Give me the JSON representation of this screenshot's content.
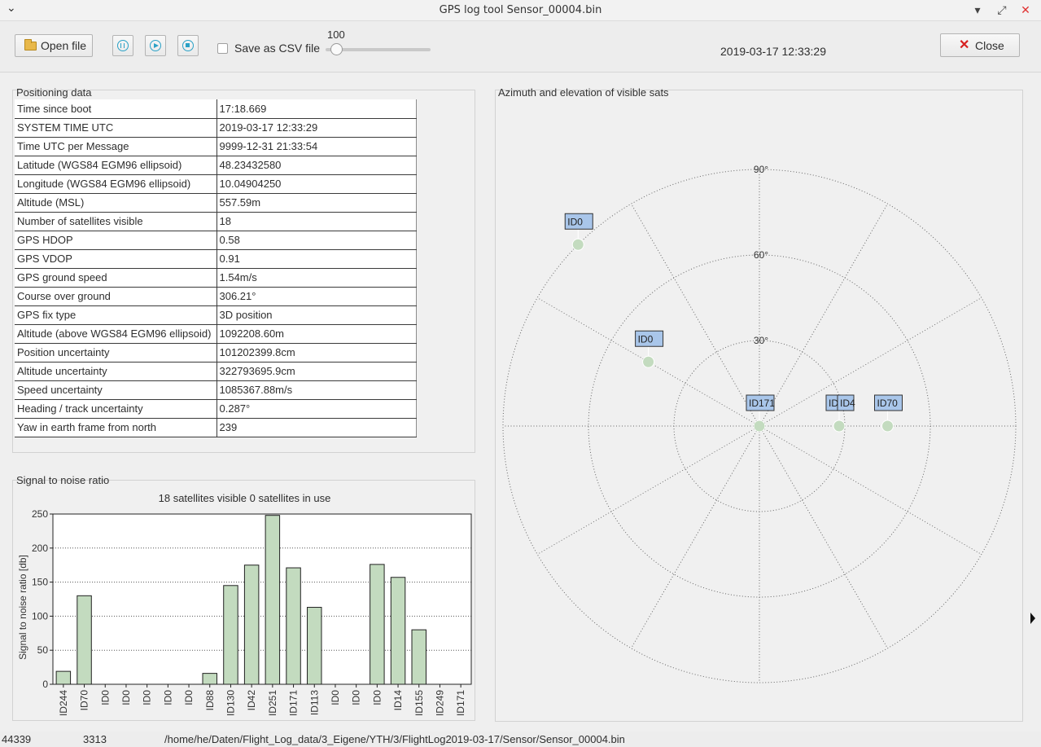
{
  "window": {
    "title": "GPS log tool  Sensor_00004.bin",
    "menu_icon": "chevron-down-icon",
    "minimize_glyph": "▾",
    "restore_glyph": "⤢",
    "close_glyph": "✕"
  },
  "toolbar": {
    "open_label": "Open file",
    "csv_label": "Save as CSV file",
    "csv_checked": false,
    "slider_value": "100",
    "datetime": "2019-03-17 12:33:29",
    "close_label": "Close",
    "icons": [
      "folder-icon",
      "pause-icon",
      "play-icon",
      "stop-icon",
      "close-icon"
    ]
  },
  "positioning": {
    "title": "Positioning data",
    "rows": [
      {
        "key": "Time since boot",
        "value": "17:18.669"
      },
      {
        "key": "SYSTEM TIME UTC",
        "value": "2019-03-17 12:33:29"
      },
      {
        "key": "Time UTC per Message",
        "value": "9999-12-31 21:33:54"
      },
      {
        "key": "Latitude (WGS84 EGM96 ellipsoid)",
        "value": "48.23432580"
      },
      {
        "key": "Longitude (WGS84 EGM96 ellipsoid)",
        "value": "10.04904250"
      },
      {
        "key": "Altitude (MSL)",
        "value": "557.59m"
      },
      {
        "key": "Number of satellites visible",
        "value": "18"
      },
      {
        "key": "GPS HDOP",
        "value": "0.58"
      },
      {
        "key": "GPS VDOP",
        "value": "0.91"
      },
      {
        "key": "GPS ground speed",
        "value": "1.54m/s"
      },
      {
        "key": "Course over ground",
        "value": "306.21°"
      },
      {
        "key": "GPS fix type",
        "value": "3D position"
      },
      {
        "key": "Altitude (above WGS84 EGM96 ellipsoid)",
        "value": "1092208.60m"
      },
      {
        "key": "Position uncertainty",
        "value": "101202399.8cm"
      },
      {
        "key": "Altitude uncertainty",
        "value": "322793695.9cm"
      },
      {
        "key": "Speed uncertainty",
        "value": "1085367.88m/s"
      },
      {
        "key": "Heading / track uncertainty",
        "value": "0.287°"
      },
      {
        "key": "Yaw in earth frame from north",
        "value": "239"
      }
    ]
  },
  "snr": {
    "title": "Signal to noise ratio",
    "caption": "18 satellites visible  0 satellites in use"
  },
  "polar": {
    "title": "Azimuth and elevation of visible sats"
  },
  "statusbar": {
    "count1": "44339",
    "count2": "3313",
    "path": "/home/he/Daten/Flight_Log_data/3_Eigene/YTH/3/FlightLog2019-03-17/Sensor/Sensor_00004.bin"
  },
  "chart_data": [
    {
      "type": "bar",
      "title": "",
      "ylabel": "Signal to noise ratio [db]",
      "xlabel": "",
      "ylim": [
        0,
        250
      ],
      "yticks": [
        0,
        50,
        100,
        150,
        200,
        250
      ],
      "grid": true,
      "bar_color": "#c3dbbf",
      "categories": [
        "ID244",
        "ID70",
        "ID0",
        "ID0",
        "ID0",
        "ID0",
        "ID0",
        "ID88",
        "ID130",
        "ID42",
        "ID251",
        "ID171",
        "ID113",
        "ID0",
        "ID0",
        "ID0",
        "ID14",
        "ID155",
        "ID249",
        "ID171"
      ],
      "values": [
        19,
        130,
        0,
        0,
        0,
        0,
        0,
        16,
        145,
        175,
        248,
        171,
        113,
        0,
        0,
        176,
        157,
        80,
        0,
        0
      ]
    },
    {
      "type": "scatter",
      "subtype": "polar",
      "title": "",
      "r_axis": "elevation (90° at center)",
      "rings": [
        "30°",
        "60°",
        "90°"
      ],
      "spokes_every_deg": 30,
      "marker_color": "#c3dbbf",
      "label_color": "#a9c6ea",
      "points": [
        {
          "label": "ID0",
          "azimuth": 315,
          "elevation": 0
        },
        {
          "label": "ID0",
          "azimuth": 300,
          "elevation": 45
        },
        {
          "label": "ID171",
          "azimuth": 0,
          "elevation": 90
        },
        {
          "label": "ID0",
          "azimuth": 90,
          "elevation": 62
        },
        {
          "label": "ID4",
          "azimuth": 90,
          "elevation": 62
        },
        {
          "label": "ID70",
          "azimuth": 90,
          "elevation": 45
        }
      ]
    }
  ]
}
